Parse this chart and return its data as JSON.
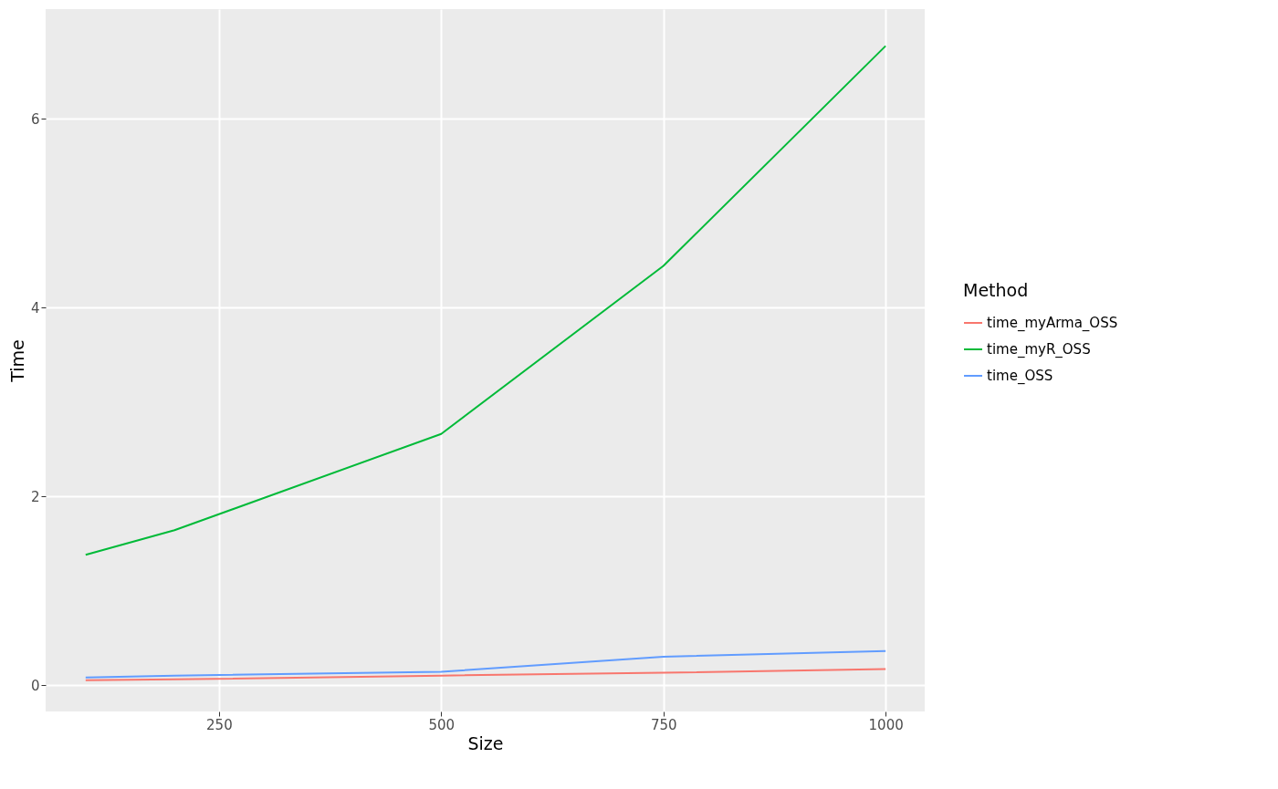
{
  "chart_data": {
    "type": "line",
    "xlabel": "Size",
    "ylabel": "Time",
    "legend_title": "Method",
    "x": [
      100,
      200,
      500,
      750,
      1000
    ],
    "series": [
      {
        "name": "time_myArma_OSS",
        "color": "#f8766d",
        "values": [
          0.05,
          0.06,
          0.1,
          0.13,
          0.17
        ]
      },
      {
        "name": "time_myR_OSS",
        "color": "#00ba38",
        "values": [
          1.38,
          1.64,
          2.66,
          4.44,
          6.77
        ]
      },
      {
        "name": "time_OSS",
        "color": "#619cff",
        "values": [
          0.08,
          0.1,
          0.14,
          0.3,
          0.36
        ]
      }
    ],
    "xlim": [
      55,
      1044
    ],
    "xticks": [
      250,
      500,
      750,
      1000
    ],
    "ylim": [
      -0.28,
      7.16
    ],
    "yticks": [
      0,
      2,
      4,
      6
    ],
    "grid": true,
    "legend": "right",
    "marker": "none",
    "line_style": "solid"
  }
}
